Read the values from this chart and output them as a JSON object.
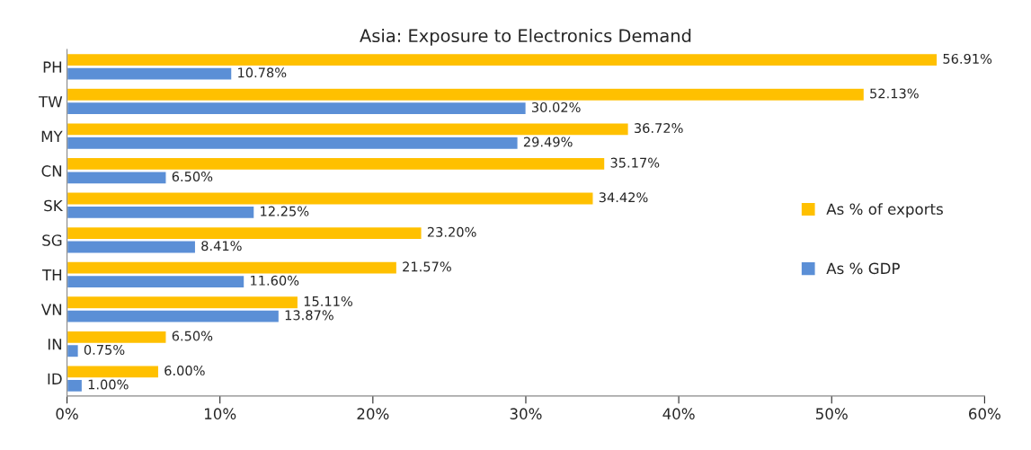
{
  "chart_data": {
    "type": "bar",
    "orientation": "horizontal",
    "title": "Asia: Exposure to Electronics Demand",
    "categories": [
      "PH",
      "TW",
      "MY",
      "CN",
      "SK",
      "SG",
      "TH",
      "VN",
      "IN",
      "ID"
    ],
    "series": [
      {
        "name": "As % of exports",
        "color": "#ffc000",
        "values": [
          56.91,
          52.13,
          36.72,
          35.17,
          34.42,
          23.2,
          21.57,
          15.11,
          6.5,
          6.0
        ],
        "value_labels": [
          "56.91%",
          "52.13%",
          "36.72%",
          "35.17%",
          "34.42%",
          "23.20%",
          "21.57%",
          "15.11%",
          "6.50%",
          "6.00%"
        ]
      },
      {
        "name": "As % GDP",
        "color": "#5b8fd6",
        "values": [
          10.78,
          30.02,
          29.49,
          6.5,
          12.25,
          8.41,
          11.6,
          13.87,
          0.75,
          1.0
        ],
        "value_labels": [
          "10.78%",
          "30.02%",
          "29.49%",
          "6.50%",
          "12.25%",
          "8.41%",
          "11.60%",
          "13.87%",
          "0.75%",
          "1.00%"
        ]
      }
    ],
    "xlim": [
      0,
      60
    ],
    "xticks": [
      {
        "value": 0,
        "label": "0%"
      },
      {
        "value": 10,
        "label": "10%"
      },
      {
        "value": 20,
        "label": "20%"
      },
      {
        "value": 30,
        "label": "30%"
      },
      {
        "value": 40,
        "label": "40%"
      },
      {
        "value": 50,
        "label": "50%"
      },
      {
        "value": 60,
        "label": "60%"
      }
    ],
    "legend": "right",
    "grid": false
  }
}
